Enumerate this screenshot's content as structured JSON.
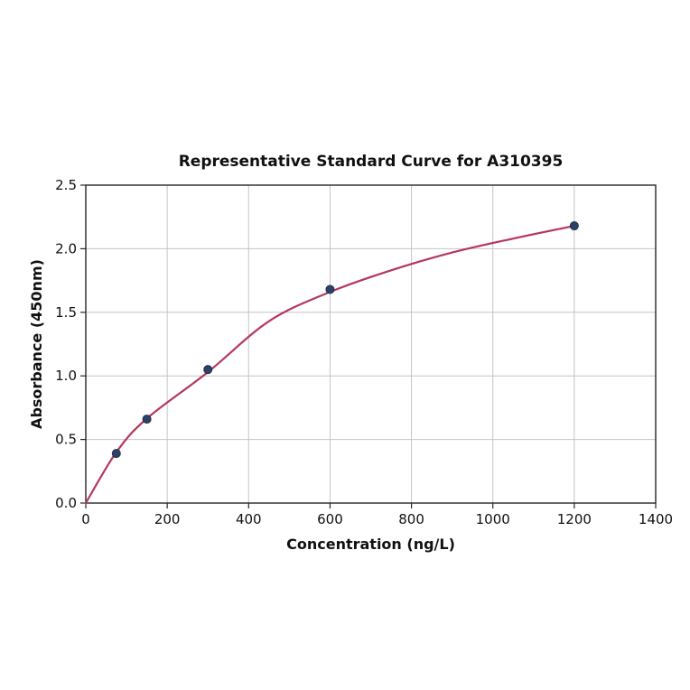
{
  "chart_data": {
    "type": "scatter",
    "title": "Representative Standard Curve for A310395",
    "xlabel": "Concentration (ng/L)",
    "ylabel": "Absorbance (450nm)",
    "xlim": [
      0,
      1400
    ],
    "ylim": [
      0,
      2.5
    ],
    "x_ticks": [
      0,
      200,
      400,
      600,
      800,
      1000,
      1200,
      1400
    ],
    "x_tick_labels": [
      "0",
      "200",
      "400",
      "600",
      "800",
      "1000",
      "1200",
      "1400"
    ],
    "y_ticks": [
      0.0,
      0.5,
      1.0,
      1.5,
      2.0,
      2.5
    ],
    "y_tick_labels": [
      "0.0",
      "0.5",
      "1.0",
      "1.5",
      "2.0",
      "2.5"
    ],
    "grid": true,
    "legend_position": "none",
    "points": [
      {
        "x": 75,
        "y": 0.39
      },
      {
        "x": 150,
        "y": 0.66
      },
      {
        "x": 300,
        "y": 1.05
      },
      {
        "x": 600,
        "y": 1.68
      },
      {
        "x": 1200,
        "y": 2.18
      }
    ],
    "fit_curve": [
      {
        "x": 0,
        "y": 0.0
      },
      {
        "x": 75,
        "y": 0.4
      },
      {
        "x": 150,
        "y": 0.665
      },
      {
        "x": 300,
        "y": 1.03
      },
      {
        "x": 450,
        "y": 1.43
      },
      {
        "x": 600,
        "y": 1.66
      },
      {
        "x": 750,
        "y": 1.83
      },
      {
        "x": 900,
        "y": 1.97
      },
      {
        "x": 1050,
        "y": 2.08
      },
      {
        "x": 1200,
        "y": 2.18
      }
    ],
    "colors": {
      "curve": "#b5365e",
      "marker": "#2d4168",
      "marker_edge": "#1f2f4f",
      "grid": "#c4c4c4",
      "axis": "#262626",
      "text": "#111111",
      "background": "#ffffff"
    }
  }
}
